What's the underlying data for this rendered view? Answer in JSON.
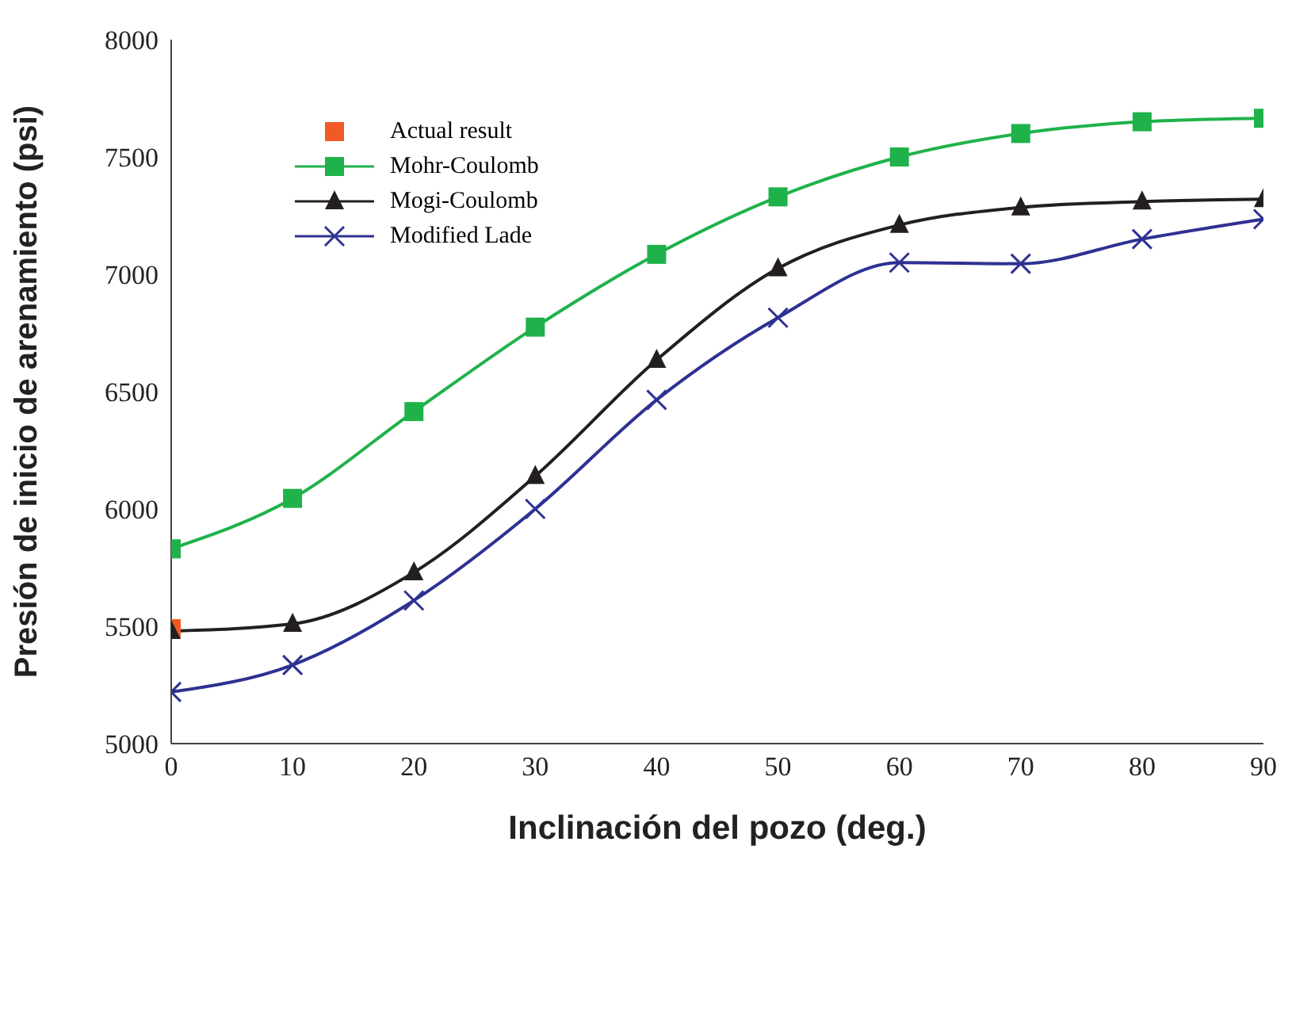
{
  "chart_data": {
    "type": "line",
    "xlabel": "Inclinación del pozo (deg.)",
    "ylabel": "Presión de inicio de arenamiento (psi)",
    "x": [
      0,
      10,
      20,
      30,
      40,
      50,
      60,
      70,
      80,
      90
    ],
    "series": [
      {
        "name": "Actual result",
        "type": "scatter",
        "marker": "square",
        "color": "#f15a24",
        "x": [
          0
        ],
        "values": [
          5490
        ]
      },
      {
        "name": "Mohr-Coulomb",
        "marker": "square",
        "color": "#1fb24a",
        "values": [
          5830,
          6045,
          6415,
          6775,
          7085,
          7330,
          7500,
          7600,
          7650,
          7665
        ]
      },
      {
        "name": "Mogi-Coulomb",
        "marker": "triangle",
        "color": "#231f20",
        "values": [
          5480,
          5510,
          5730,
          6140,
          6635,
          7025,
          7210,
          7285,
          7310,
          7320
        ]
      },
      {
        "name": "Modified Lade",
        "marker": "cross",
        "color": "#2e3192",
        "values": [
          5220,
          5335,
          5610,
          6000,
          6465,
          6815,
          7050,
          7045,
          7150,
          7235
        ]
      }
    ],
    "xlim": [
      0,
      90
    ],
    "xticks": [
      0,
      10,
      20,
      30,
      40,
      50,
      60,
      70,
      80,
      90
    ],
    "ylim": [
      5000,
      8000
    ],
    "yticks": [
      5000,
      5500,
      6000,
      6500,
      7000,
      7500,
      8000
    ],
    "grid": false,
    "legend": "top left",
    "line_style": "solid"
  }
}
